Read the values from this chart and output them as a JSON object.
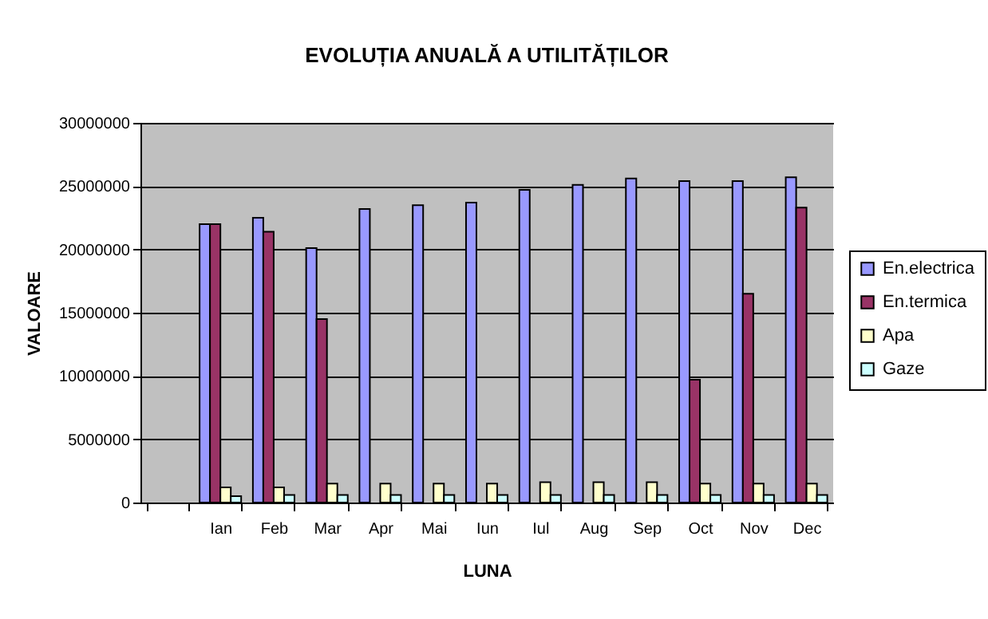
{
  "chart_data": {
    "type": "bar",
    "title": "EVOLUȚIA ANUALĂ A UTILITĂȚILOR",
    "xlabel": "LUNA",
    "ylabel": "VALOARE",
    "categories": [
      null,
      "Ian",
      "Feb",
      "Mar",
      "Apr",
      "Mai",
      "Iun",
      "Iul",
      "Aug",
      "Sep",
      "Oct",
      "Nov",
      "Dec"
    ],
    "series": [
      {
        "name": "En.electrica",
        "color": "#9999ff",
        "values": [
          null,
          22000000,
          22500000,
          20100000,
          23200000,
          23500000,
          23700000,
          24700000,
          25100000,
          25600000,
          25400000,
          25400000,
          25700000
        ]
      },
      {
        "name": "En.termica",
        "color": "#993366",
        "values": [
          null,
          22000000,
          21400000,
          14500000,
          null,
          null,
          null,
          null,
          null,
          null,
          9700000,
          16500000,
          23300000
        ]
      },
      {
        "name": "Apa",
        "color": "#ffffcc",
        "values": [
          null,
          1200000,
          1200000,
          1500000,
          1500000,
          1500000,
          1500000,
          1600000,
          1600000,
          1600000,
          1500000,
          1500000,
          1500000
        ]
      },
      {
        "name": "Gaze",
        "color": "#ccffff",
        "values": [
          null,
          500000,
          600000,
          600000,
          600000,
          600000,
          600000,
          600000,
          600000,
          600000,
          600000,
          600000,
          600000
        ]
      }
    ],
    "ylim": [
      0,
      30000000
    ],
    "yticks": [
      0,
      5000000,
      10000000,
      15000000,
      20000000,
      25000000,
      30000000
    ],
    "grid": "y",
    "legend": "right"
  }
}
